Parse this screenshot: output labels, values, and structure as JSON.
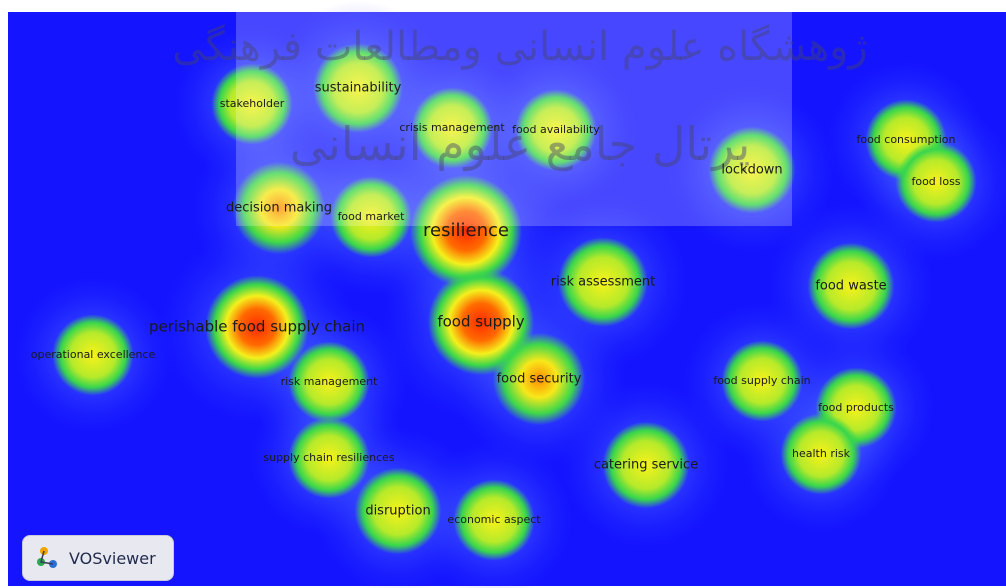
{
  "branding": {
    "app_name": "VOSviewer",
    "icon": "vosviewer-logo-icon"
  },
  "watermark": {
    "line1": "ژوهشگاه علوم انسانی ومطالعات فرهنگی",
    "line2": "پرتال جامع علوم انسانی"
  },
  "colors": {
    "background": "#1414ff",
    "density_low": "#3aa0ff",
    "density_mid": "#37d84a",
    "density_high": "#f7f01b",
    "density_peak": "#ff3b00"
  },
  "terms": [
    {
      "label": "sustainability",
      "weight": 0.6
    },
    {
      "label": "stakeholder",
      "weight": 0.45
    },
    {
      "label": "crisis management",
      "weight": 0.45
    },
    {
      "label": "food availability",
      "weight": 0.45
    },
    {
      "label": "lockdown",
      "weight": 0.55
    },
    {
      "label": "food consumption",
      "weight": 0.45
    },
    {
      "label": "food loss",
      "weight": 0.45
    },
    {
      "label": "decision making",
      "weight": 0.65
    },
    {
      "label": "food market",
      "weight": 0.45
    },
    {
      "label": "resilience",
      "weight": 1.0
    },
    {
      "label": "risk assessment",
      "weight": 0.6
    },
    {
      "label": "food waste",
      "weight": 0.55
    },
    {
      "label": "perishable food supply chain",
      "weight": 0.85
    },
    {
      "label": "food supply",
      "weight": 0.9
    },
    {
      "label": "operational excellence",
      "weight": 0.45
    },
    {
      "label": "risk management",
      "weight": 0.45
    },
    {
      "label": "food security",
      "weight": 0.65
    },
    {
      "label": "food supply chain",
      "weight": 0.45
    },
    {
      "label": "food products",
      "weight": 0.45
    },
    {
      "label": "supply chain resiliences",
      "weight": 0.45
    },
    {
      "label": "health risk",
      "weight": 0.45
    },
    {
      "label": "catering service",
      "weight": 0.55
    },
    {
      "label": "disruption",
      "weight": 0.55
    },
    {
      "label": "economic aspect",
      "weight": 0.45
    }
  ]
}
